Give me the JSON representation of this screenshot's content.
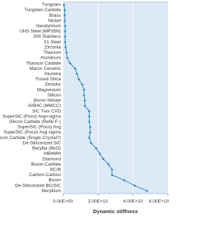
{
  "chart_data": {
    "type": "line",
    "x_label": "Dynamic stiffness",
    "categories": [
      "Tungsten",
      "Tungsten Carbide",
      "Brass",
      "Nickel",
      "Neodymium",
      "UHS Steel (MP35N)",
      "300 Stainless",
      "01 Steel",
      "Zirconia",
      "Titanium",
      "Aluminum",
      "Titanium Carbide",
      "Macor Ceramic",
      "Alumina",
      "Fused Silica",
      "Zerodur",
      "Magnesium",
      "Silicon",
      "Boron Nitrate",
      "Al/B4C (MMCC)",
      "SiC Trex CVD",
      "SuperSiC (Poco) Avg+sigma",
      "Silicon Carbide (Refel F-)",
      "SuperSiC (Poco) Avg",
      "SuperSiC (Poco) Avg-sigma",
      "Silicon Carbide (Single Crystal?)",
      "De-Siliconized SiC",
      "Beryllia (BeO)",
      "AlBeMet",
      "Diamond",
      "Boron Carbide",
      "BC/B",
      "Carbon-Carbon",
      "Boron",
      "De-Siliconized BC/SiC",
      "Beryllium"
    ],
    "values": [
      500000000.0,
      1000000000.0,
      1000000000.0,
      1000000000.0,
      1200000000.0,
      1200000000.0,
      1200000000.0,
      1200000000.0,
      1500000000.0,
      2000000000.0,
      2500000000.0,
      4000000000.0,
      7000000000.0,
      8000000000.0,
      9000000000.0,
      11000000000.0,
      12000000000.0,
      12000000000.0,
      12500000000.0,
      12500000000.0,
      15000000000.0,
      15000000000.0,
      15000000000.0,
      15500000000.0,
      15500000000.0,
      15000000000.0,
      16000000000.0,
      19000000000.0,
      21000000000.0,
      23000000000.0,
      26000000000.0,
      28000000000.0,
      28000000000.0,
      35000000000.0,
      41000000000.0,
      48000000000.0
    ],
    "color": "#2e86c1",
    "xlim": [
      0,
      60000000000.0
    ],
    "xticks": [
      {
        "value": 0,
        "label": "0.00E+00"
      },
      {
        "value": 20000000000.0,
        "label": "2.00E+10"
      },
      {
        "value": 40000000000.0,
        "label": "4.00E+10"
      },
      {
        "value": 60000000000.0,
        "label": "6.00E+10"
      }
    ],
    "grid": true
  }
}
